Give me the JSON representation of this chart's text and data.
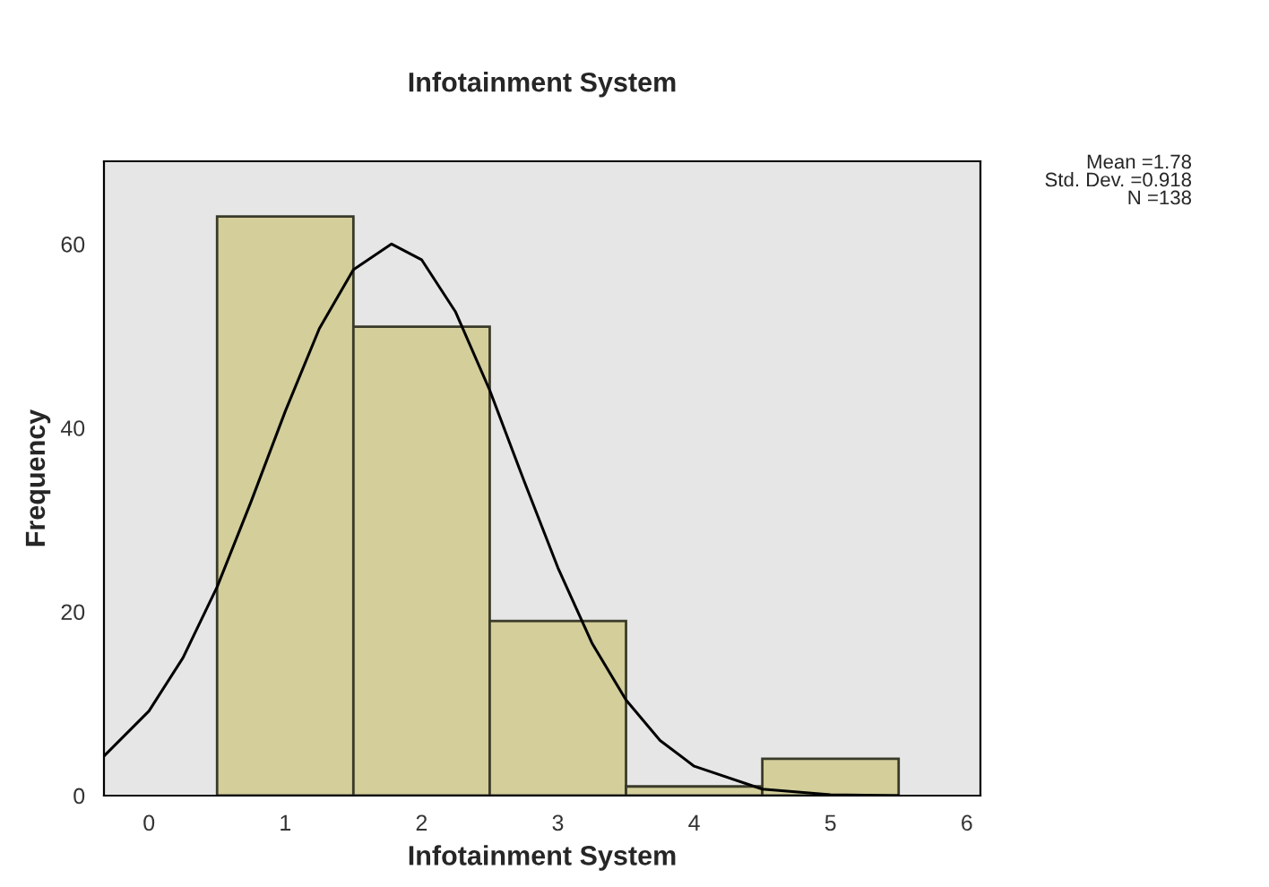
{
  "chart_data": {
    "type": "histogram",
    "title": "Infotainment System",
    "xlabel": "Infotainment System",
    "ylabel": "Frequency",
    "bins": [
      0.5,
      1.5,
      2.5,
      3.5,
      4.5,
      5.5
    ],
    "values": [
      63,
      51,
      19,
      1,
      4
    ],
    "color": "#d3ce9a",
    "series": [
      {
        "type": "line",
        "color": "#000000",
        "x": [
          -0.33,
          0,
          0.25,
          0.5,
          0.75,
          1,
          1.25,
          1.5,
          1.78,
          2,
          2.25,
          2.5,
          2.75,
          3,
          3.25,
          3.5,
          3.75,
          4,
          4.5,
          5,
          5.5
        ],
        "values": [
          4.3,
          9.2,
          15.0,
          22.7,
          32.0,
          41.8,
          50.8,
          57.2,
          60.0,
          58.3,
          52.6,
          44.1,
          34.3,
          24.8,
          16.6,
          10.4,
          6.0,
          3.2,
          0.7,
          0.1,
          0.0
        ]
      }
    ],
    "xlim": [
      -0.33,
      6.1
    ],
    "ylim": [
      0,
      69
    ],
    "xticks": [
      0,
      1,
      2,
      3,
      4,
      5,
      6
    ],
    "yticks": [
      0,
      20,
      40,
      60
    ],
    "grid": false,
    "annotations": [
      "Mean =1.78",
      "Std. Dev. =0.918",
      "N =138"
    ]
  }
}
